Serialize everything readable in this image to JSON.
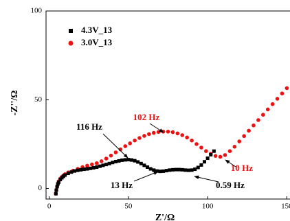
{
  "chart_data": {
    "type": "scatter",
    "x_label": "Z'/Ω",
    "y_label": "-Z''/Ω",
    "xlim": [
      -2,
      152
    ],
    "ylim": [
      -6,
      100
    ],
    "xticks": [
      0,
      50,
      100,
      150
    ],
    "yticks": [
      0,
      50,
      100
    ],
    "grid": false,
    "legend": "upper left",
    "series": [
      {
        "name": "4.3V_13",
        "color": "#000000",
        "marker": "square",
        "x": [
          4.2,
          4.5,
          5,
          5.5,
          6,
          7,
          8,
          9,
          10,
          12,
          14,
          16,
          18,
          20,
          22,
          24,
          26,
          28,
          30,
          32,
          34,
          36,
          38,
          40,
          42,
          44,
          46,
          48,
          50,
          52,
          54,
          56,
          58,
          60,
          62,
          64,
          66,
          68,
          70,
          72,
          74,
          76,
          78,
          80,
          82,
          84,
          86,
          88,
          90,
          92,
          94,
          96,
          98,
          100,
          102,
          104
        ],
        "values": [
          -3,
          -1,
          1,
          2.5,
          3.5,
          5,
          6,
          6.8,
          7.5,
          8.5,
          9.2,
          9.8,
          10.2,
          10.5,
          10.8,
          11,
          11.3,
          11.6,
          12,
          12.5,
          13,
          13.5,
          14,
          14.6,
          15.1,
          15.5,
          15.9,
          16.1,
          16.2,
          16,
          15.6,
          14.9,
          14,
          13,
          12,
          11,
          10.3,
          9.8,
          9.6,
          9.7,
          10,
          10.3,
          10.5,
          10.6,
          10.6,
          10.5,
          10.3,
          10.2,
          10.3,
          10.8,
          11.8,
          13.2,
          15,
          17,
          19,
          21
        ]
      },
      {
        "name": "3.0V_13",
        "color": "#ee1111",
        "marker": "circle",
        "x": [
          4.2,
          4.5,
          5,
          5.5,
          6,
          7,
          8,
          9,
          10,
          12,
          15,
          18,
          21,
          24,
          27,
          30,
          33,
          36,
          39,
          42,
          45,
          48,
          51,
          54,
          57,
          60,
          63,
          66,
          69,
          72,
          75,
          78,
          81,
          84,
          87,
          90,
          93,
          96,
          99,
          102,
          105,
          108,
          111,
          114,
          117,
          120,
          123,
          126,
          129,
          132,
          135,
          138,
          141,
          144,
          147,
          150
        ],
        "values": [
          -3,
          -1,
          1,
          2.8,
          4,
          5.5,
          6.5,
          7.3,
          8,
          9,
          10,
          11,
          12,
          12.8,
          13.5,
          14.2,
          15.3,
          16.8,
          18.5,
          20.3,
          22,
          23.8,
          25.4,
          27,
          28.4,
          29.6,
          30.6,
          31.3,
          31.8,
          32,
          32,
          31.7,
          31,
          30,
          28.7,
          27,
          25,
          23,
          21,
          19.5,
          18.3,
          17.8,
          18.8,
          21,
          23.5,
          26.5,
          29.5,
          32.5,
          35.5,
          38.5,
          41.5,
          44.5,
          47.5,
          50.5,
          53.5,
          56.5
        ]
      }
    ],
    "annotations": [
      {
        "text": "116 Hz",
        "color": "#000000"
      },
      {
        "text": "102 Hz",
        "color": "#ee1111"
      },
      {
        "text": "13 Hz",
        "color": "#000000"
      },
      {
        "text": "0.59 Hz",
        "color": "#000000"
      },
      {
        "text": "10 Hz",
        "color": "#ee1111"
      }
    ]
  }
}
